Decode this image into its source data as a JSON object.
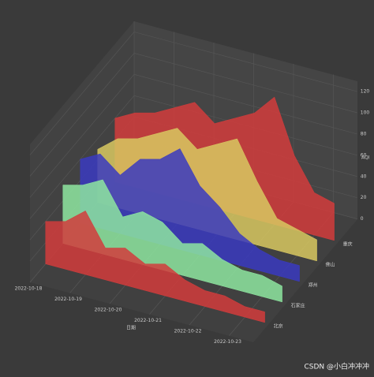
{
  "chart_data": {
    "type": "waterfall3d",
    "x_label": "日期",
    "z_label": "AQI",
    "x": [
      0,
      0.5,
      1,
      1.5,
      2,
      2.5,
      3,
      3.5,
      4,
      4.5,
      5,
      5.5
    ],
    "xlim": [
      0,
      5.6
    ],
    "xticks": [
      {
        "value": 0,
        "label": "2022-10-18"
      },
      {
        "value": 1,
        "label": "2022-10-19"
      },
      {
        "value": 2,
        "label": "2022-10-20"
      },
      {
        "value": 3,
        "label": "2022-10-21"
      },
      {
        "value": 4,
        "label": "2022-10-22"
      },
      {
        "value": 5,
        "label": "2022-10-23"
      }
    ],
    "zlim": [
      0,
      130
    ],
    "zticks": [
      0,
      20,
      40,
      60,
      80,
      100,
      120
    ],
    "series": [
      {
        "name": "北京",
        "color": "#d23c3c",
        "values": [
          40,
          45,
          60,
          30,
          35,
          25,
          30,
          20,
          15,
          15,
          10,
          10
        ]
      },
      {
        "name": "石家庄",
        "color": "#8ee6a0",
        "values": [
          55,
          60,
          70,
          40,
          50,
          45,
          30,
          35,
          25,
          20,
          20,
          15
        ]
      },
      {
        "name": "郑州",
        "color": "#3a3ac0",
        "values": [
          60,
          70,
          55,
          75,
          80,
          95,
          65,
          50,
          30,
          20,
          15,
          15
        ]
      },
      {
        "name": "佛山",
        "color": "#d8c860",
        "values": [
          50,
          65,
          70,
          80,
          90,
          75,
          85,
          95,
          60,
          30,
          25,
          20
        ]
      },
      {
        "name": "重庆",
        "color": "#d23c3c",
        "values": [
          60,
          70,
          75,
          85,
          95,
          80,
          90,
          100,
          120,
          70,
          40,
          35
        ]
      }
    ]
  },
  "watermark": "CSDN @小白冲冲冲"
}
